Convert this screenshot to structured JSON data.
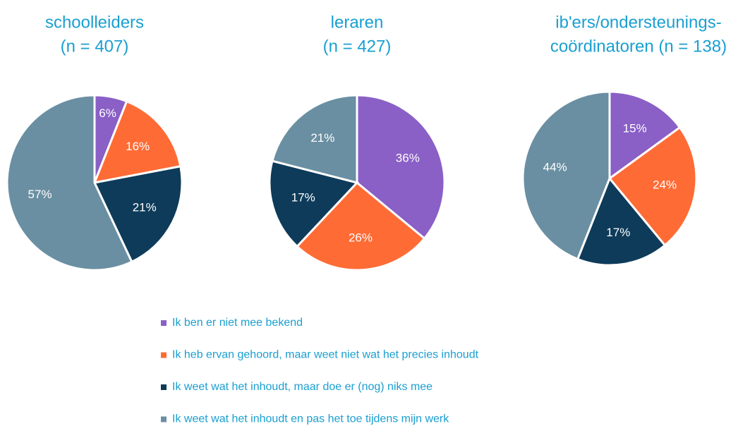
{
  "chart_data": [
    {
      "type": "pie",
      "title": [
        "schoolleiders",
        "(n = 407)"
      ],
      "categories": [
        "Ik ben er niet mee bekend",
        "Ik heb ervan gehoord, maar weet niet wat het precies inhoudt",
        "Ik weet wat het inhoudt, maar doe er (nog) niks mee",
        "Ik weet wat het inhoudt en pas het toe tijdens mijn werk"
      ],
      "colors": [
        "#8a5fc6",
        "#ff6b35",
        "#0e3b5a",
        "#6a8fa2"
      ],
      "values": [
        6,
        16,
        21,
        57
      ],
      "value_labels": [
        "6%",
        "16%",
        "21%",
        "57%"
      ]
    },
    {
      "type": "pie",
      "title": [
        "leraren",
        "(n = 427)"
      ],
      "values": [
        36,
        26,
        17,
        21
      ],
      "value_labels": [
        "36%",
        "26%",
        "17%",
        "21%"
      ]
    },
    {
      "type": "pie",
      "title": [
        "ib'ers/ondersteunings-",
        "coördinatoren (n = 138)"
      ],
      "values": [
        15,
        24,
        17,
        44
      ],
      "value_labels": [
        "15%",
        "24%",
        "17%",
        "44%"
      ]
    }
  ]
}
